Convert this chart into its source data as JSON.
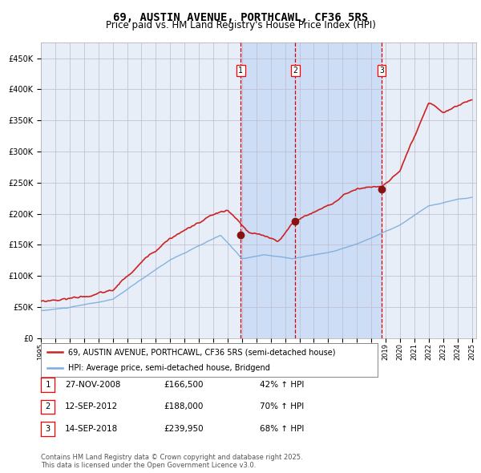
{
  "title": "69, AUSTIN AVENUE, PORTHCAWL, CF36 5RS",
  "subtitle": "Price paid vs. HM Land Registry's House Price Index (HPI)",
  "ylim": [
    0,
    475000
  ],
  "yticks": [
    0,
    50000,
    100000,
    150000,
    200000,
    250000,
    300000,
    350000,
    400000,
    450000
  ],
  "ytick_labels": [
    "£0",
    "£50K",
    "£100K",
    "£150K",
    "£200K",
    "£250K",
    "£300K",
    "£350K",
    "£400K",
    "£450K"
  ],
  "hpi_color": "#7aacdd",
  "price_color": "#cc2222",
  "sale_marker_color": "#881111",
  "vline_color": "#dd0000",
  "shade_color": "#ccddf5",
  "grid_color": "#bbbbcc",
  "background_color": "#e8eef8",
  "title_fontsize": 10,
  "subtitle_fontsize": 8.5,
  "legend_label_price": "69, AUSTIN AVENUE, PORTHCAWL, CF36 5RS (semi-detached house)",
  "legend_label_hpi": "HPI: Average price, semi-detached house, Bridgend",
  "sale_dates_t": [
    2008.91,
    2012.7,
    2018.71
  ],
  "sale_prices": [
    166500,
    188000,
    239950
  ],
  "sale_labels": [
    "1",
    "2",
    "3"
  ],
  "footer_text": "Contains HM Land Registry data © Crown copyright and database right 2025.\nThis data is licensed under the Open Government Licence v3.0.",
  "table_rows": [
    [
      "1",
      "27-NOV-2008",
      "£166,500",
      "42% ↑ HPI"
    ],
    [
      "2",
      "12-SEP-2012",
      "£188,000",
      "70% ↑ HPI"
    ],
    [
      "3",
      "14-SEP-2018",
      "£239,950",
      "68% ↑ HPI"
    ]
  ]
}
